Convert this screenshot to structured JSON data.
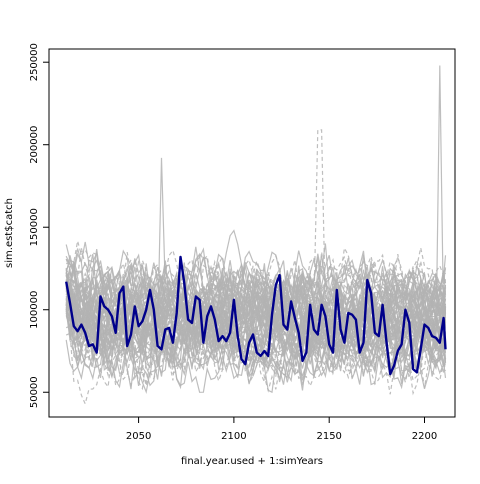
{
  "chart_data": {
    "type": "line",
    "title": "",
    "xlabel": "final.year.used + 1:simYears",
    "ylabel": "sim.est$catch",
    "xlim": [
      2003,
      2216
    ],
    "ylim": [
      35000,
      258000
    ],
    "x_ticks": [
      2050,
      2100,
      2150,
      2200
    ],
    "y_ticks": [
      50000,
      100000,
      150000,
      200000,
      250000
    ],
    "x_tick_labels": [
      "2050",
      "2100",
      "2150",
      "2200"
    ],
    "y_tick_labels": [
      "50000",
      "100000",
      "150000",
      "200000",
      "250000"
    ],
    "grid": false,
    "legend": "none",
    "colors": {
      "simulations": "#b3b3b3",
      "highlight": "#00008b",
      "axes": "#000000"
    },
    "x_start": 2012,
    "x_end": 2211,
    "envelope": {
      "description": "many grey simulated catch trajectories (solid and dashed)",
      "typical_upper": 160000,
      "typical_lower": 60000,
      "peaks": [
        {
          "x": 2062,
          "y": 192000
        },
        {
          "x": 2145,
          "y": 209000
        },
        {
          "x": 2208,
          "y": 248000
        }
      ]
    },
    "series": [
      {
        "style": "solid",
        "color": "#00008b",
        "x": [
          2012,
          2014,
          2016,
          2018,
          2020,
          2022,
          2024,
          2026,
          2028,
          2030,
          2032,
          2034,
          2036,
          2038,
          2040,
          2042,
          2044,
          2046,
          2048,
          2050,
          2052,
          2054,
          2056,
          2058,
          2060,
          2062,
          2064,
          2066,
          2068,
          2070,
          2072,
          2074,
          2076,
          2078,
          2080,
          2082,
          2084,
          2086,
          2088,
          2090,
          2092,
          2094,
          2096,
          2098,
          2100,
          2102,
          2104,
          2106,
          2108,
          2110,
          2112,
          2114,
          2116,
          2118,
          2120,
          2122,
          2124,
          2126,
          2128,
          2130,
          2132,
          2134,
          2136,
          2138,
          2140,
          2142,
          2144,
          2146,
          2148,
          2150,
          2152,
          2154,
          2156,
          2158,
          2160,
          2162,
          2164,
          2166,
          2168,
          2170,
          2172,
          2174,
          2176,
          2178,
          2180,
          2182,
          2184,
          2186,
          2188,
          2190,
          2192,
          2194,
          2196,
          2198,
          2200,
          2202,
          2204,
          2206,
          2208,
          2210,
          2211
        ],
        "y": [
          117000,
          104000,
          90000,
          87000,
          91000,
          86000,
          78000,
          79000,
          74000,
          108000,
          102000,
          100000,
          96000,
          86000,
          110000,
          114000,
          78000,
          85000,
          102000,
          90000,
          93000,
          100000,
          112000,
          100000,
          78000,
          76000,
          88000,
          89000,
          80000,
          98000,
          132000,
          116000,
          94000,
          92000,
          108000,
          106000,
          80000,
          96000,
          102000,
          94000,
          81000,
          84000,
          81000,
          86000,
          106000,
          84000,
          70000,
          67000,
          80000,
          85000,
          74000,
          72000,
          75000,
          72000,
          97000,
          115000,
          121000,
          91000,
          88000,
          105000,
          95000,
          86000,
          69000,
          74000,
          103000,
          88000,
          85000,
          103000,
          96000,
          79000,
          74000,
          112000,
          88000,
          80000,
          98000,
          97000,
          94000,
          74000,
          80000,
          118000,
          110000,
          86000,
          84000,
          103000,
          81000,
          61000,
          66000,
          75000,
          79000,
          100000,
          92000,
          64000,
          62000,
          76000,
          91000,
          89000,
          84000,
          83000,
          80000,
          95000,
          76000
        ]
      }
    ]
  }
}
